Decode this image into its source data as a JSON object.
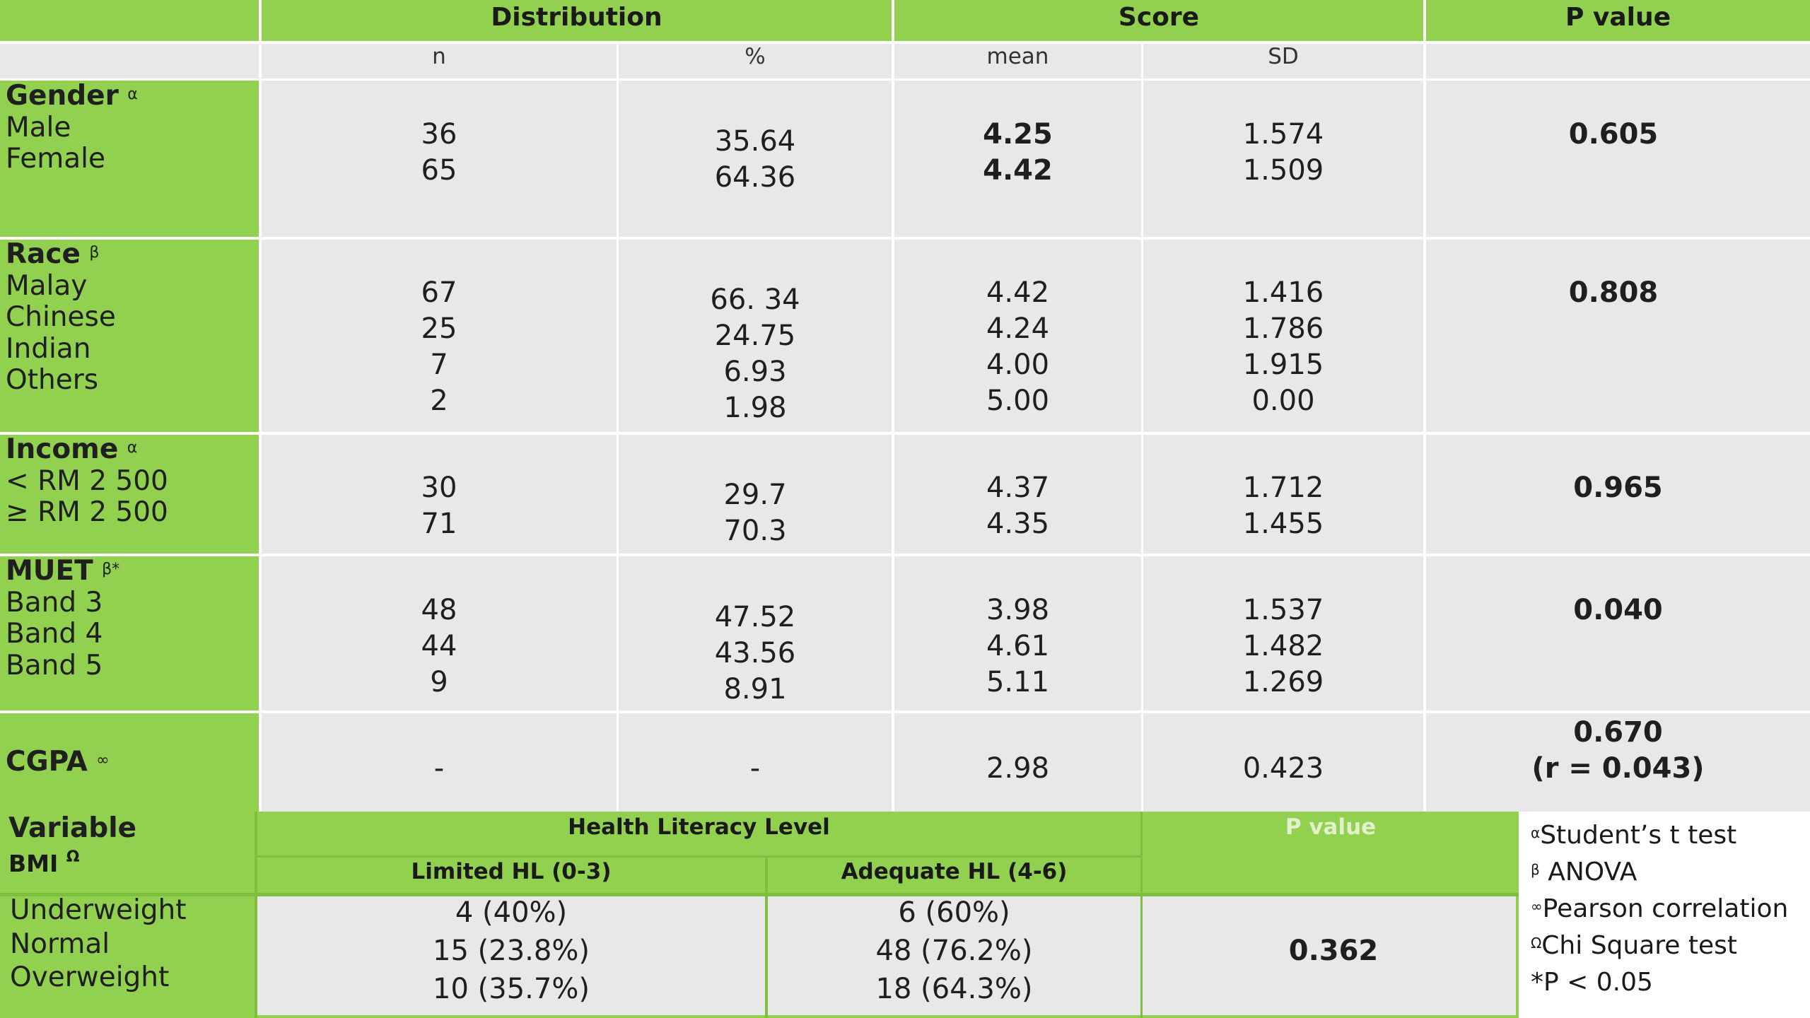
{
  "header": {
    "distribution": "Distribution",
    "score": "Score",
    "pvalue": "P value",
    "n": "n",
    "percent": "%",
    "mean": "mean",
    "sd": "SD"
  },
  "rows": [
    {
      "title": "Gender",
      "sup": "α",
      "items": [
        "Male",
        "Female"
      ],
      "n": [
        "36",
        "65"
      ],
      "pct": [
        "35.64",
        "64.36"
      ],
      "mean": [
        "4.25",
        "4.42"
      ],
      "sd": [
        "1.574",
        "1.509"
      ],
      "p": [
        "0.605"
      ]
    },
    {
      "title": "Race",
      "sup": "β",
      "items": [
        "Malay",
        "Chinese",
        "Indian",
        "Others"
      ],
      "n": [
        "67",
        "25",
        "7",
        "2"
      ],
      "pct": [
        "66. 34",
        "24.75",
        "6.93",
        "1.98"
      ],
      "mean": [
        "4.42",
        "4.24",
        "4.00",
        "5.00"
      ],
      "sd": [
        "1.416",
        "1.786",
        "1.915",
        "0.00"
      ],
      "p": [
        "0.808"
      ]
    },
    {
      "title": "Income",
      "sup": "α",
      "items": [
        "< RM 2 500",
        "≥ RM 2 500"
      ],
      "n": [
        "30",
        "71"
      ],
      "pct": [
        "29.7",
        "70.3"
      ],
      "mean": [
        "4.37",
        "4.35"
      ],
      "sd": [
        "1.712",
        "1.455"
      ],
      "p": [
        "0.965"
      ]
    },
    {
      "title": "MUET",
      "sup": "β*",
      "items": [
        "Band 3",
        "Band 4",
        "Band 5"
      ],
      "n": [
        "48",
        "44",
        "9"
      ],
      "pct": [
        "47.52",
        "43.56",
        "8.91"
      ],
      "mean": [
        "3.98",
        "4.61",
        "5.11"
      ],
      "sd": [
        "1.537",
        "1.482",
        "1.269"
      ],
      "p": [
        "0.040"
      ]
    },
    {
      "title": "CGPA",
      "sup": "∞",
      "items": [],
      "n": [
        "-"
      ],
      "pct": [
        "-"
      ],
      "mean": [
        "2.98"
      ],
      "sd": [
        "0.423"
      ],
      "p": [
        "0.670",
        "(r = 0.043)"
      ]
    }
  ],
  "bmi_table": {
    "variable_label": "Variable",
    "bmi_label": "BMI",
    "bmi_sup": "Ω",
    "hl_level": "Health Literacy Level",
    "pvalue": "P value",
    "limited": "Limited HL (0-3)",
    "adequate": "Adequate HL (4-6)",
    "categories": [
      "Underweight",
      "Normal",
      "Overweight"
    ],
    "limited_values": [
      "4 (40%)",
      "15 (23.8%)",
      "10 (35.7%)"
    ],
    "adequate_values": [
      "6 (60%)",
      "48 (76.2%)",
      "18 (64.3%)"
    ],
    "p": "0.362"
  },
  "notes": [
    {
      "sup": "α",
      "text": "Student’s t test"
    },
    {
      "sup": "β",
      "text": " ANOVA"
    },
    {
      "sup": "∞",
      "text": "Pearson correlation"
    },
    {
      "sup": "Ω",
      "text": "Chi Square test"
    },
    {
      "sup": "",
      "text": "*P < 0.05"
    }
  ],
  "colors": {
    "green": "#92d050",
    "grey": "#e8e8e8",
    "pvalue_header_text": "#e2f0cc"
  }
}
